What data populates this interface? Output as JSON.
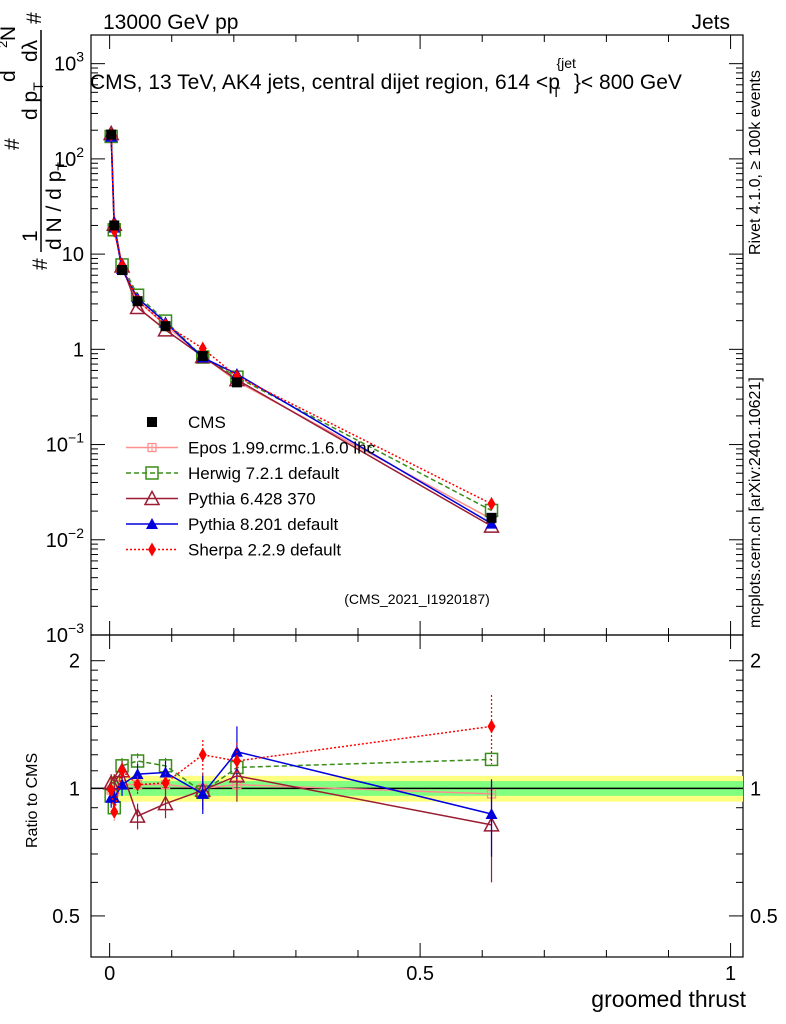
{
  "header": {
    "left": "13000 GeV pp",
    "right": "Jets"
  },
  "title": {
    "main": "CMS, 13 TeV, AK4 jets, central dijet region, 614 <p",
    "sub_T": "T",
    "sup_jet": "{jet",
    "tail": "}< 800 GeV"
  },
  "side_labels": {
    "rivet": "Rivet 4.1.0, ≥ 100k events",
    "mcplots": "mcplots.cern.ch [arXiv:2401.10621]"
  },
  "analysis_tag": "(CMS_2021_I1920187)",
  "axes": {
    "xlabel": "groomed thrust",
    "ylabel_top_parts": [
      "#",
      "1",
      "d N / d p",
      "T",
      "#",
      "d p",
      "T",
      "d",
      "N",
      "2",
      "d",
      "λ",
      "#"
    ],
    "ylabel_ratio": "Ratio to CMS",
    "xticks": [
      "0",
      "0.5",
      "1"
    ],
    "yticks_main": [
      {
        "base": "10",
        "exp": "−3"
      },
      {
        "base": "10",
        "exp": "−2"
      },
      {
        "base": "10",
        "exp": "−1"
      },
      {
        "base": "1",
        "exp": ""
      },
      {
        "base": "10",
        "exp": ""
      },
      {
        "base": "10",
        "exp": "2"
      },
      {
        "base": "10",
        "exp": "3"
      }
    ],
    "yticks_ratio": [
      "0.5",
      "1",
      "2"
    ]
  },
  "colors": {
    "cms": "#000000",
    "epos": "#ff9090",
    "herwig": "#3a8d1a",
    "pythia6": "#9b1c33",
    "pythia8": "#0000dd",
    "sherpa": "#ff0000",
    "band_inner": "#80ff80",
    "band_outer": "#ffff80"
  },
  "legend": [
    {
      "key": "cms",
      "label": "CMS"
    },
    {
      "key": "epos",
      "label": "Epos 1.99.crmc.1.6.0 lhc"
    },
    {
      "key": "herwig",
      "label": "Herwig 7.2.1 default"
    },
    {
      "key": "pythia6",
      "label": "Pythia 6.428 370"
    },
    {
      "key": "pythia8",
      "label": "Pythia 8.201 default"
    },
    {
      "key": "sherpa",
      "label": "Sherpa 2.2.9 default"
    }
  ],
  "chart_data": {
    "type": "line",
    "title": "CMS, 13 TeV, AK4 jets, central dijet region, 614 < p_T^{jet} < 800 GeV",
    "xlabel": "groomed thrust",
    "ylabel": "(1/dN/dp_T) d²N/(dp_T dλ)",
    "xlim": [
      -0.03,
      1.02
    ],
    "ylim": [
      0.001,
      2000
    ],
    "yscale": "log",
    "ratio_ylim": [
      0.4,
      2.3
    ],
    "ratio_yscale": "log",
    "x": [
      0.0025,
      0.0075,
      0.02,
      0.045,
      0.09,
      0.15,
      0.205,
      0.615
    ],
    "series": [
      {
        "key": "cms",
        "name": "CMS",
        "values": [
          180,
          20,
          6.8,
          3.2,
          1.75,
          0.85,
          0.45,
          0.017
        ],
        "ratio": [
          1,
          1,
          1,
          1,
          1,
          1,
          1,
          1
        ]
      },
      {
        "key": "epos",
        "name": "Epos 1.99.crmc.1.6.0 lhc",
        "values": [
          178,
          19.6,
          6.9,
          3.25,
          1.78,
          0.85,
          0.46,
          0.0165
        ],
        "ratio": [
          0.99,
          0.98,
          1.02,
          1.02,
          1.02,
          1.0,
          1.02,
          0.97
        ]
      },
      {
        "key": "herwig",
        "name": "Herwig 7.2.1 default",
        "values": [
          172,
          18,
          7.7,
          3.7,
          1.98,
          0.83,
          0.51,
          0.0203
        ],
        "ratio": [
          0.96,
          0.9,
          1.13,
          1.16,
          1.13,
          0.98,
          1.12,
          1.17
        ]
      },
      {
        "key": "pythia6",
        "name": "Pythia 6.428 370",
        "values": [
          185,
          20.6,
          7.5,
          2.75,
          1.6,
          0.84,
          0.48,
          0.0139
        ],
        "ratio": [
          1.03,
          1.03,
          1.1,
          0.86,
          0.92,
          0.99,
          1.07,
          0.82
        ]
      },
      {
        "key": "pythia8",
        "name": "Pythia 8.201 default",
        "values": [
          171,
          19,
          6.95,
          3.45,
          1.92,
          0.82,
          0.55,
          0.0148
        ],
        "ratio": [
          0.95,
          0.95,
          1.02,
          1.08,
          1.09,
          0.97,
          1.22,
          0.87
        ]
      },
      {
        "key": "sherpa",
        "name": "Sherpa 2.2.9 default",
        "values": [
          178,
          17.6,
          7.5,
          3.25,
          1.82,
          1.02,
          0.52,
          0.0238
        ],
        "ratio": [
          0.99,
          0.88,
          1.1,
          1.02,
          1.03,
          1.2,
          1.16,
          1.4
        ]
      }
    ],
    "ratio_errors": {
      "herwig": [
        0.04,
        0.04,
        0.05,
        0.05,
        0.05,
        0.07,
        0.1,
        0.0
      ],
      "pythia6": [
        0.05,
        0.05,
        0.06,
        0.06,
        0.07,
        0.1,
        0.14,
        0.22
      ],
      "pythia8": [
        0.05,
        0.05,
        0.06,
        0.06,
        0.07,
        0.1,
        0.18,
        0.18
      ],
      "sherpa": [
        0.04,
        0.04,
        0.05,
        0.05,
        0.06,
        0.1,
        0.12,
        0.26
      ]
    },
    "band": {
      "inner": 0.04,
      "outer": 0.07
    },
    "legend_position": "middle-left"
  }
}
